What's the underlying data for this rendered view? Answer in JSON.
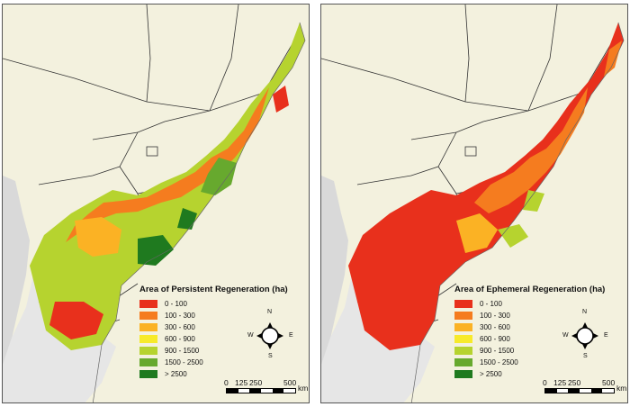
{
  "panels": [
    {
      "id": "persistent",
      "legend_title": "Area of Persistent Regeneration (ha)",
      "classes": [
        {
          "label": "0 - 100",
          "color": "#e8301c"
        },
        {
          "label": "100 - 300",
          "color": "#f57c1f"
        },
        {
          "label": "300 - 600",
          "color": "#fbb224"
        },
        {
          "label": "600 - 900",
          "color": "#f7ea2a"
        },
        {
          "label": "900 - 1500",
          "color": "#b6d32f"
        },
        {
          "label": "1500 - 2500",
          "color": "#67a92e"
        },
        {
          "label": "> 2500",
          "color": "#1f7a1f"
        }
      ]
    },
    {
      "id": "ephemeral",
      "legend_title": "Area of Ephemeral Regeneration (ha)",
      "classes": [
        {
          "label": "0 - 100",
          "color": "#e8301c"
        },
        {
          "label": "100 - 300",
          "color": "#f57c1f"
        },
        {
          "label": "300 - 600",
          "color": "#fbb224"
        },
        {
          "label": "600 - 900",
          "color": "#f7ea2a"
        },
        {
          "label": "900 - 1500",
          "color": "#b6d32f"
        },
        {
          "label": "1500 - 2500",
          "color": "#67a92e"
        },
        {
          "label": "> 2500",
          "color": "#1f7a1f"
        }
      ]
    }
  ],
  "compass": {
    "n": "N",
    "s": "S",
    "e": "E",
    "w": "W"
  },
  "scale": {
    "t0": "0",
    "t1": "125",
    "t2": "250",
    "t3": "500",
    "unit": "km"
  },
  "colors": {
    "land": "#f3f1de",
    "outside": "#dcdcdc",
    "border": "#333333"
  }
}
